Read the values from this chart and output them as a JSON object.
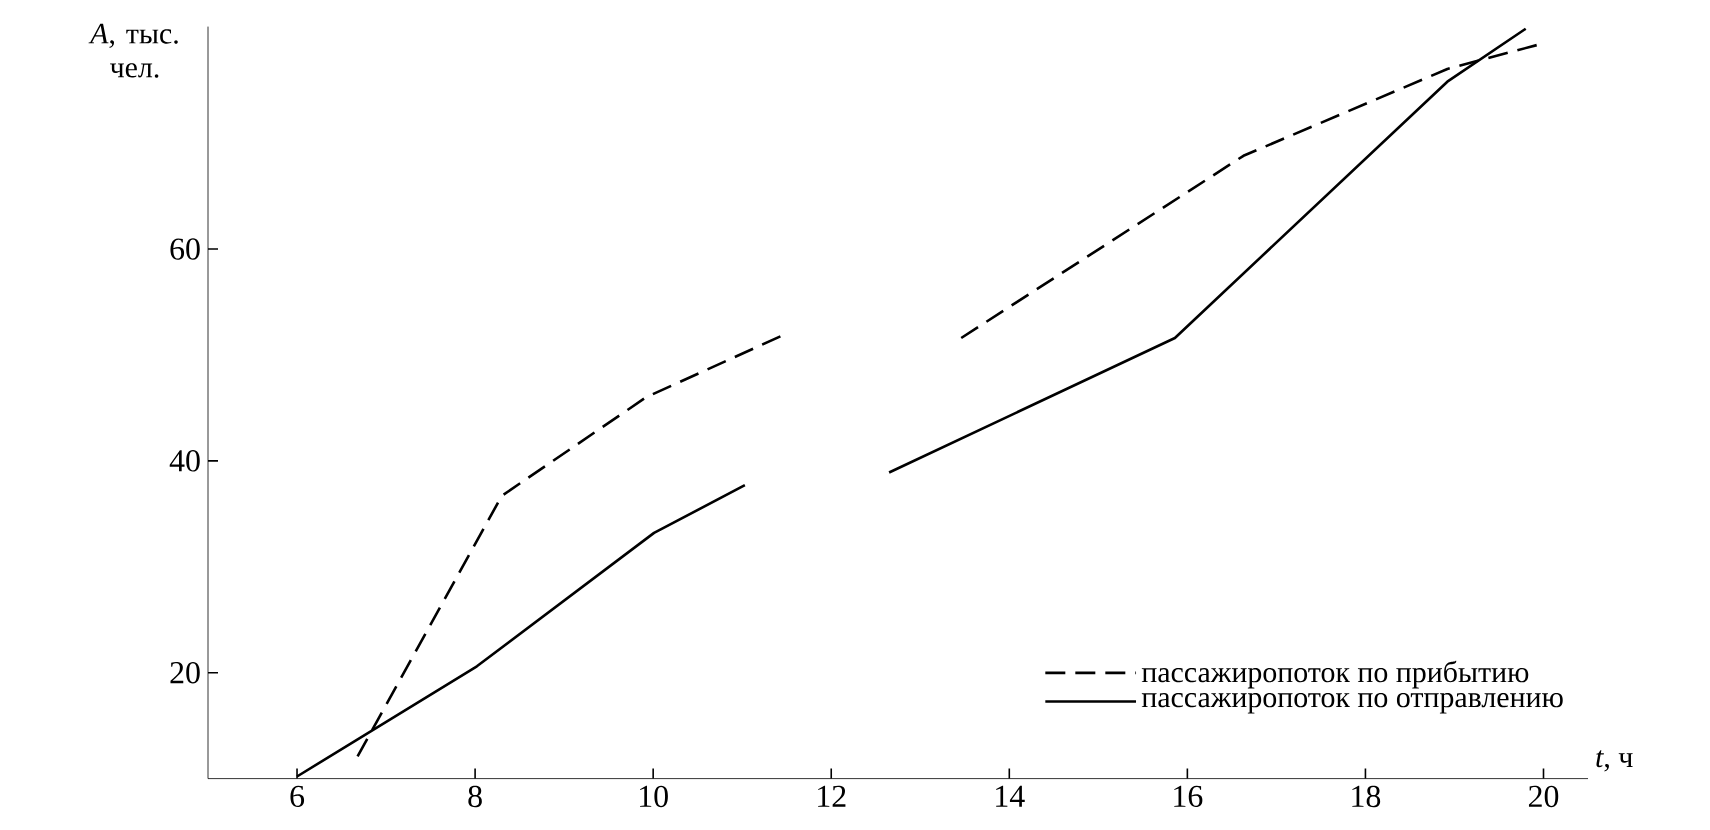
{
  "chart_data": {
    "type": "line",
    "xlabel": "*t*, ч",
    "ylabel": "*A*, тыс. чел.",
    "xlim": [
      5,
      20.5
    ],
    "ylim": [
      10,
      81
    ],
    "xticks": [
      6,
      8,
      10,
      12,
      14,
      16,
      18,
      20
    ],
    "yticks": [
      20,
      40,
      60
    ],
    "grid": false,
    "legend": "bottom right",
    "marker": "none",
    "series": [
      {
        "name": "пассажиропоток по прибытию",
        "color": "#000000",
        "line_style": "dashed",
        "x": [
          6.68,
          8.3,
          9.92,
          11.44,
          null,
          13.46,
          16.63,
          18.92,
          19.99
        ],
        "values": [
          12.1,
          36.7,
          46.0,
          51.8,
          null,
          51.6,
          68.8,
          77.0,
          79.4
        ]
      },
      {
        "name": "пассажиропоток по отправлению",
        "color": "#000000",
        "line_style": "solid",
        "x": [
          6,
          8.02,
          10.01,
          11.03,
          null,
          12.65,
          15.86,
          18.92,
          19.8
        ],
        "values": [
          10.2,
          20.6,
          33.2,
          37.7,
          null,
          38.9,
          51.6,
          75.8,
          80.8
        ]
      }
    ]
  }
}
